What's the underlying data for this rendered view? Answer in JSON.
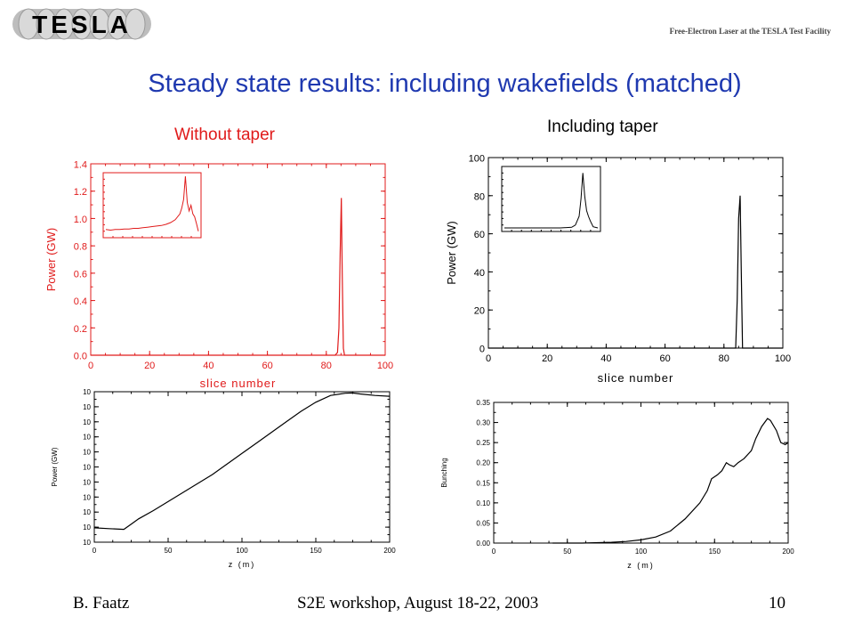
{
  "header": {
    "logo_text": "TESLA",
    "facility": "Free-Electron Laser at the TESLA Test Facility"
  },
  "title": "Steady state results: including wakefields (matched)",
  "subtitles": {
    "left": "Without taper",
    "right": "Including taper"
  },
  "footer": {
    "author": "B. Faatz",
    "event": "S2E workshop, August 18-22, 2003",
    "page": "10"
  },
  "colors": {
    "title": "#1f39b0",
    "red_plot": "#e01b1b",
    "black_plot": "#000000"
  },
  "chart_data": [
    {
      "id": "power-no-taper",
      "type": "line",
      "xlabel": "slice number",
      "ylabel": "Power (GW)",
      "xlim": [
        0,
        100
      ],
      "ylim": [
        0,
        1.4
      ],
      "xticks": [
        0,
        20,
        40,
        60,
        80,
        100
      ],
      "yticks": [
        0.0,
        0.2,
        0.4,
        0.6,
        0.8,
        1.0,
        1.2,
        1.4
      ],
      "ytick_labels": [
        "0.0",
        "0.2",
        "0.4",
        "0.6",
        "0.8",
        "1.0",
        "1.2",
        "1.4"
      ],
      "color": "#e01b1b",
      "series": [
        {
          "x": [
            0,
            83,
            83.8,
            84.3,
            84.7,
            85.1,
            85.4,
            85.8,
            86.2,
            100
          ],
          "y": [
            0,
            0,
            0.02,
            0.2,
            0.75,
            1.15,
            0.6,
            0.05,
            0,
            0
          ]
        }
      ],
      "inset": {
        "x": [
          0,
          0.05,
          0.1,
          0.15,
          0.2,
          0.25,
          0.3,
          0.35,
          0.4,
          0.45,
          0.5,
          0.55,
          0.6,
          0.65,
          0.7,
          0.75,
          0.8,
          0.82,
          0.84,
          0.86,
          0.88,
          0.9,
          0.92,
          0.94,
          0.96,
          0.98,
          1.0
        ],
        "y": [
          0.08,
          0.07,
          0.08,
          0.08,
          0.09,
          0.09,
          0.1,
          0.1,
          0.11,
          0.12,
          0.13,
          0.14,
          0.15,
          0.17,
          0.2,
          0.25,
          0.35,
          0.45,
          0.6,
          1.0,
          0.55,
          0.4,
          0.5,
          0.35,
          0.3,
          0.18,
          0.05
        ]
      }
    },
    {
      "id": "power-with-taper",
      "type": "line",
      "xlabel": "slice number",
      "ylabel": "Power (GW)",
      "xlim": [
        0,
        100
      ],
      "ylim": [
        0,
        100
      ],
      "xticks": [
        0,
        20,
        40,
        60,
        80,
        100
      ],
      "yticks": [
        0,
        20,
        40,
        60,
        80,
        100
      ],
      "ytick_labels": [
        "0",
        "20",
        "40",
        "60",
        "80",
        "100"
      ],
      "color": "#000000",
      "series": [
        {
          "x": [
            0,
            84,
            84.5,
            85,
            85.5,
            85.9,
            86.3,
            100
          ],
          "y": [
            0,
            0,
            25,
            68,
            80,
            40,
            0,
            0
          ]
        }
      ],
      "inset": {
        "x": [
          0,
          0.1,
          0.2,
          0.3,
          0.4,
          0.5,
          0.6,
          0.72,
          0.76,
          0.8,
          0.82,
          0.84,
          0.86,
          0.88,
          0.9,
          0.92,
          0.95,
          1.0
        ],
        "y": [
          0,
          0,
          0,
          0,
          0,
          0,
          0,
          0.01,
          0.05,
          0.2,
          0.5,
          0.95,
          0.55,
          0.3,
          0.2,
          0.12,
          0.02,
          0
        ]
      }
    },
    {
      "id": "power-vs-z",
      "type": "line",
      "xlabel": "z (m)",
      "ylabel": "Power (GW)",
      "xlim": [
        0,
        200
      ],
      "ylim": [
        0,
        10
      ],
      "xticks": [
        0,
        50,
        100,
        150,
        200
      ],
      "yticks": [
        0,
        1,
        2,
        3,
        4,
        5,
        6,
        7,
        8,
        9,
        10
      ],
      "ytick_labels": [
        "10",
        "10",
        "10",
        "10",
        "10",
        "10",
        "10",
        "10",
        "10",
        "10",
        "10"
      ],
      "ytick_sup": [
        "",
        "",
        "",
        "",
        "",
        "",
        "",
        "",
        "",
        "",
        ""
      ],
      "log_scale": true,
      "color": "#000000",
      "series": [
        {
          "x": [
            0,
            10,
            20,
            25,
            30,
            40,
            50,
            60,
            70,
            80,
            90,
            100,
            110,
            120,
            130,
            140,
            150,
            160,
            170,
            175,
            180,
            190,
            200
          ],
          "y": [
            0.95,
            0.9,
            0.85,
            1.2,
            1.55,
            2.1,
            2.7,
            3.3,
            3.9,
            4.5,
            5.2,
            5.9,
            6.6,
            7.3,
            8.0,
            8.7,
            9.3,
            9.75,
            9.9,
            9.92,
            9.85,
            9.75,
            9.7
          ]
        }
      ]
    },
    {
      "id": "bunching-vs-z",
      "type": "line",
      "xlabel": "z (m)",
      "ylabel": "Bunching",
      "xlim": [
        0,
        200
      ],
      "ylim": [
        0,
        0.35
      ],
      "xticks": [
        0,
        50,
        100,
        150,
        200
      ],
      "yticks": [
        0.0,
        0.05,
        0.1,
        0.15,
        0.2,
        0.25,
        0.3,
        0.35
      ],
      "ytick_labels": [
        "0.00",
        "0.05",
        "0.10",
        "0.15",
        "0.20",
        "0.25",
        "0.30",
        "0.35"
      ],
      "color": "#000000",
      "series": [
        {
          "x": [
            40,
            60,
            80,
            90,
            100,
            110,
            120,
            130,
            140,
            145,
            148,
            152,
            155,
            158,
            160,
            163,
            166,
            170,
            175,
            178,
            182,
            186,
            188,
            192,
            195,
            198,
            200
          ],
          "y": [
            0.0,
            0.0,
            0.002,
            0.004,
            0.008,
            0.015,
            0.03,
            0.06,
            0.1,
            0.13,
            0.16,
            0.17,
            0.18,
            0.2,
            0.195,
            0.19,
            0.2,
            0.21,
            0.23,
            0.26,
            0.29,
            0.31,
            0.305,
            0.28,
            0.25,
            0.245,
            0.25
          ]
        }
      ]
    }
  ]
}
